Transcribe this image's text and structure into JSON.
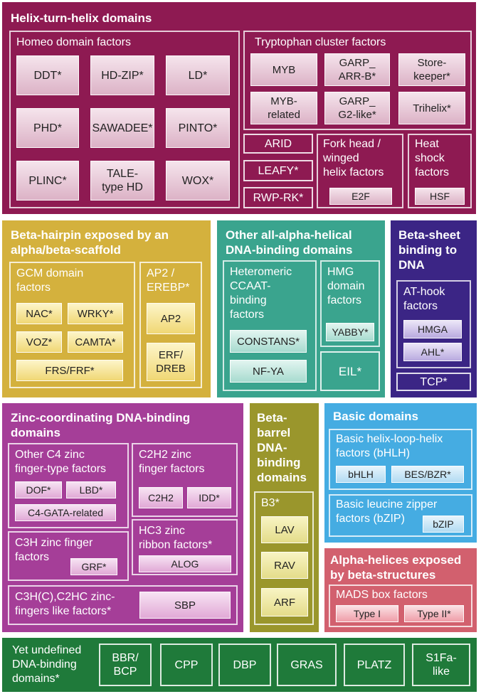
{
  "helix_turn_helix": {
    "title": "Helix-turn-helix domains",
    "homeo": {
      "label": "Homeo domain factors",
      "items": [
        "DDT*",
        "HD-ZIP*",
        "LD*",
        "PHD*",
        "SAWADEE*",
        "PINTO*",
        "PLINC*",
        "TALE-\ntype HD",
        "WOX*"
      ]
    },
    "tryptophan": {
      "label": "Tryptophan cluster factors",
      "items": [
        "MYB",
        "GARP_\nARR-B*",
        "Store-\nkeeper*",
        "MYB-\nrelated",
        "GARP_\nG2-like*",
        "Trihelix*"
      ]
    },
    "arid": "ARID",
    "leafy": "LEAFY*",
    "rwp_rk": "RWP-RK*",
    "fork_head": {
      "label": "Fork head /\nwinged\nhelix factors",
      "items": [
        "E2F"
      ]
    },
    "heat_shock": {
      "label": "Heat\nshock\nfactors",
      "items": [
        "HSF"
      ]
    }
  },
  "beta_hairpin": {
    "title": "Beta-hairpin exposed by an\nalpha/beta-scaffold",
    "gcm": {
      "label": "GCM domain\nfactors",
      "items": [
        "NAC*",
        "WRKY*",
        "VOZ*",
        "CAMTA*",
        "FRS/FRF*"
      ]
    },
    "ap2": {
      "label": "AP2 /\nEREBP*",
      "items": [
        "AP2",
        "ERF/\nDREB"
      ]
    }
  },
  "all_alpha": {
    "title": "Other all-alpha-helical\nDNA-binding domains",
    "ccaat": {
      "label": "Heteromeric\nCCAAT-\nbinding\nfactors",
      "items": [
        "CONSTANS*",
        "NF-YA"
      ]
    },
    "hmg": {
      "label": "HMG\ndomain\nfactors",
      "items": [
        "YABBY*"
      ]
    },
    "eil": "EIL*"
  },
  "beta_sheet": {
    "title": "Beta-sheet\nbinding to\nDNA",
    "at_hook": {
      "label": "AT-hook\nfactors",
      "items": [
        "HMGA",
        "AHL*"
      ]
    },
    "tcp": "TCP*"
  },
  "zinc": {
    "title": "Zinc-coordinating DNA-binding\ndomains",
    "c4": {
      "label": "Other C4 zinc\nfinger-type factors",
      "items": [
        "DOF*",
        "LBD*",
        "C4-GATA-related"
      ]
    },
    "c2h2": {
      "label": "C2H2 zinc\nfinger factors",
      "items": [
        "C2H2",
        "IDD*"
      ]
    },
    "c3h": {
      "label": "C3H zinc finger\nfactors",
      "items": [
        "GRF*"
      ]
    },
    "hc3": {
      "label": "HC3 zinc\nribbon factors*",
      "items": [
        "ALOG"
      ]
    },
    "c3hc": {
      "label": "C3H(C),C2HC zinc-\nfingers like factors*",
      "items": [
        "SBP"
      ]
    }
  },
  "beta_barrel": {
    "title": "Beta-\nbarrel\nDNA-\nbinding\ndomains",
    "b3": {
      "label": "B3*",
      "items": [
        "LAV",
        "RAV",
        "ARF"
      ]
    }
  },
  "basic": {
    "title": "Basic domains",
    "bhlh": {
      "label": "Basic helix-loop-helix\nfactors (bHLH)",
      "items": [
        "bHLH",
        "BES/BZR*"
      ]
    },
    "bzip": {
      "label": "Basic leucine zipper\nfactors (bZIP)",
      "items": [
        "bZIP"
      ]
    }
  },
  "alpha_beta": {
    "title": "Alpha-helices exposed\nby beta-structures",
    "mads": {
      "label": "MADS box factors",
      "items": [
        "Type I",
        "Type II*"
      ]
    }
  },
  "undefined": {
    "title": "Yet undefined\nDNA-binding\ndomains*",
    "items": [
      "BBR/\nBCP",
      "CPP",
      "DBP",
      "GRAS",
      "PLATZ",
      "S1Fa-\nlike"
    ]
  },
  "colors": {
    "helix_turn_helix": "#8e1a52",
    "beta_hairpin": "#d4b13d",
    "all_alpha": "#3aa48e",
    "beta_sheet": "#3b2585",
    "zinc": "#a53e98",
    "beta_barrel": "#9a962c",
    "basic": "#45ace2",
    "alpha_beta": "#d2606e",
    "undefined": "#1f7a3a"
  }
}
